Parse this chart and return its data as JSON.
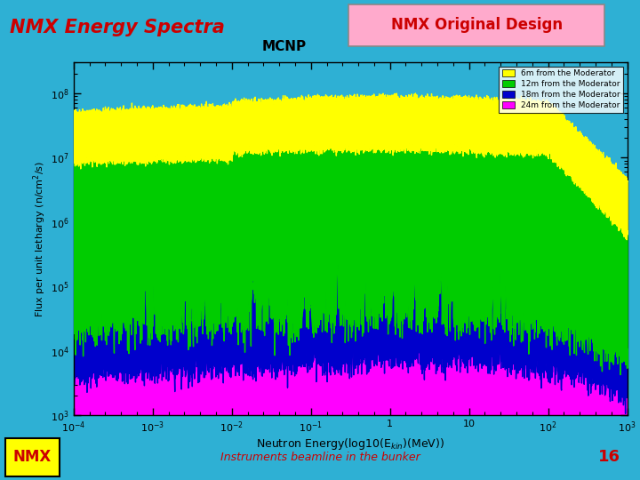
{
  "title": "NMX Energy Spectra",
  "subtitle": "MCNP",
  "badge_text": "NMX Original Design",
  "xlabel": "Neutron Energy(log10(E$_{kin}$)(MeV))",
  "ylabel": "Flux per unit lethargy (n/cm$^2$/s)",
  "header_bg": "#2eb0d4",
  "header_text_color": "#cc0000",
  "badge_bg": "#ffaacc",
  "badge_text_color": "#cc0000",
  "plot_bg": "#2eb0d4",
  "footer_text": "Instruments beamline in the bunker",
  "footer_color": "#cc0000",
  "page_number": "16",
  "page_number_color": "#cc0000",
  "legend_entries": [
    {
      "label": "6m from the Moderator",
      "color": "#ffff00"
    },
    {
      "label": "12m from the Moderator",
      "color": "#00cc00"
    },
    {
      "label": "18m from the Moderator",
      "color": "#0000cc"
    },
    {
      "label": "24m from the Moderator",
      "color": "#ff00ff"
    }
  ],
  "nmx_box_color": "#ffff00",
  "nmx_box_border": "#000000",
  "nmx_text_color": "#cc0000"
}
